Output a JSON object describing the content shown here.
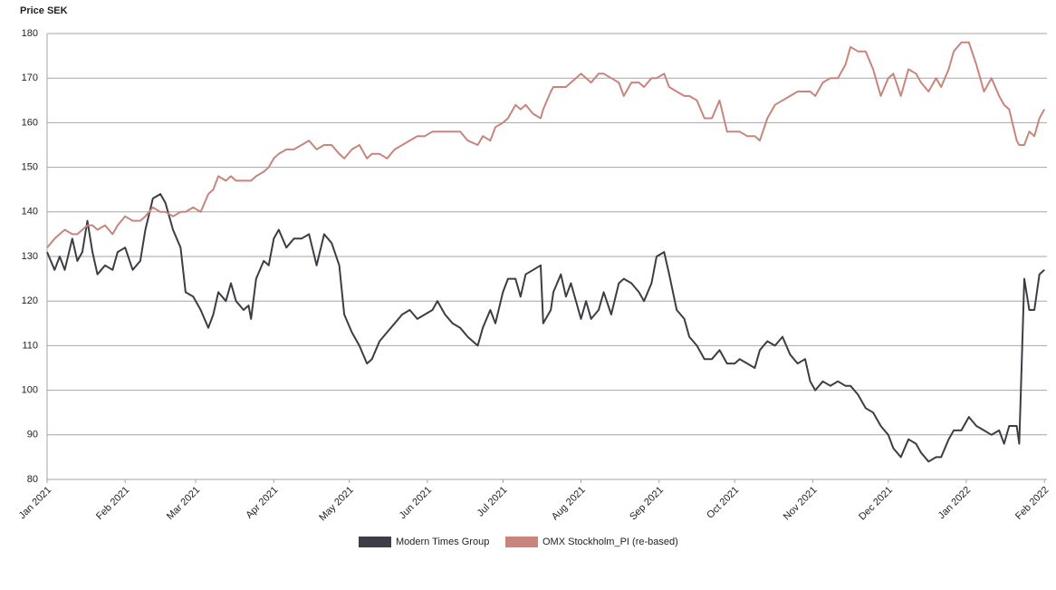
{
  "chart_data": {
    "type": "line",
    "y_label": "Price SEK",
    "x": [
      0,
      3,
      5,
      7,
      10,
      12,
      14,
      16,
      18,
      20,
      23,
      26,
      28,
      31,
      34,
      37,
      39,
      42,
      45,
      47,
      50,
      53,
      55,
      58,
      61,
      64,
      66,
      68,
      71,
      73,
      75,
      78,
      80,
      81,
      83,
      86,
      88,
      90,
      92,
      95,
      98,
      101,
      104,
      107,
      110,
      113,
      116,
      118,
      121,
      124,
      127,
      129,
      132,
      135,
      138,
      141,
      144,
      147,
      150,
      153,
      155,
      158,
      161,
      164,
      167,
      171,
      173,
      176,
      178,
      181,
      183,
      186,
      188,
      190,
      193,
      196,
      197,
      200,
      201,
      204,
      206,
      208,
      212,
      214,
      216,
      219,
      221,
      224,
      227,
      229,
      232,
      235,
      237,
      240,
      242,
      245,
      247,
      250,
      253,
      255,
      258,
      261,
      264,
      267,
      270,
      273,
      275,
      278,
      281,
      283,
      286,
      289,
      292,
      295,
      298,
      301,
      303,
      305,
      308,
      311,
      314,
      317,
      319,
      322,
      325,
      328,
      331,
      334,
      336,
      339,
      342,
      345,
      347,
      350,
      353,
      355,
      358,
      360,
      363,
      366,
      369,
      372,
      375,
      378,
      380,
      382,
      385,
      386,
      388,
      390,
      392,
      394,
      396
    ],
    "series": [
      {
        "name": "Modern Times Group",
        "color": "#3d3d45",
        "values": [
          131,
          127,
          130,
          127,
          134,
          129,
          131,
          138,
          131,
          126,
          128,
          127,
          131,
          132,
          127,
          129,
          136,
          143,
          144,
          142,
          136,
          132,
          122,
          121,
          118,
          114,
          117,
          122,
          120,
          124,
          120,
          118,
          119,
          116,
          125,
          129,
          128,
          134,
          136,
          132,
          134,
          134,
          135,
          128,
          135,
          133,
          128,
          117,
          113,
          110,
          106,
          107,
          111,
          113,
          115,
          117,
          118,
          116,
          117,
          118,
          120,
          117,
          115,
          114,
          112,
          110,
          114,
          118,
          115,
          122,
          125,
          125,
          121,
          126,
          127,
          128,
          115,
          118,
          122,
          126,
          121,
          124,
          116,
          120,
          116,
          118,
          122,
          117,
          124,
          125,
          124,
          122,
          120,
          124,
          130,
          131,
          126,
          118,
          116,
          112,
          110,
          107,
          107,
          109,
          106,
          106,
          107,
          106,
          105,
          109,
          111,
          110,
          112,
          108,
          106,
          107,
          102,
          100,
          102,
          101,
          102,
          101,
          101,
          99,
          96,
          95,
          92,
          90,
          87,
          85,
          89,
          88,
          86,
          84,
          85,
          85,
          89,
          91,
          91,
          94,
          92,
          91,
          90,
          91,
          88,
          92,
          92,
          88,
          125,
          118,
          118,
          126,
          127
        ]
      },
      {
        "name": "OMX Stockholm_PI (re-based)",
        "color": "#c8857c",
        "values": [
          132,
          134,
          135,
          136,
          135,
          135,
          136,
          137,
          137,
          136,
          137,
          135,
          137,
          139,
          138,
          138,
          139,
          141,
          140,
          140,
          139,
          140,
          140,
          141,
          140,
          144,
          145,
          148,
          147,
          148,
          147,
          147,
          147,
          147,
          148,
          149,
          150,
          152,
          153,
          154,
          154,
          155,
          156,
          154,
          155,
          155,
          153,
          152,
          154,
          155,
          152,
          153,
          153,
          152,
          154,
          155,
          156,
          157,
          157,
          158,
          158,
          158,
          158,
          158,
          156,
          155,
          157,
          156,
          159,
          160,
          161,
          164,
          163,
          164,
          162,
          161,
          163,
          167,
          168,
          168,
          168,
          169,
          171,
          170,
          169,
          171,
          171,
          170,
          169,
          166,
          169,
          169,
          168,
          170,
          170,
          171,
          168,
          167,
          166,
          166,
          165,
          161,
          161,
          165,
          158,
          158,
          158,
          157,
          157,
          156,
          161,
          164,
          165,
          166,
          167,
          167,
          167,
          166,
          169,
          170,
          170,
          173,
          177,
          176,
          176,
          172,
          166,
          170,
          171,
          166,
          172,
          171,
          169,
          167,
          170,
          168,
          172,
          176,
          178,
          178,
          173,
          167,
          170,
          166,
          164,
          163,
          156,
          155,
          155,
          158,
          157,
          161,
          163
        ]
      }
    ],
    "xlim": [
      0,
      397
    ],
    "xticks": [
      {
        "value": 0,
        "label": "Jan 2021"
      },
      {
        "value": 31,
        "label": "Feb 2021"
      },
      {
        "value": 59,
        "label": "Mar 2021"
      },
      {
        "value": 90,
        "label": "Apr 2021"
      },
      {
        "value": 120,
        "label": "May 2021"
      },
      {
        "value": 151,
        "label": "Jun 2021"
      },
      {
        "value": 181,
        "label": "Jul 2021"
      },
      {
        "value": 212,
        "label": "Aug 2021"
      },
      {
        "value": 243,
        "label": "Sep 2021"
      },
      {
        "value": 273,
        "label": "Oct 2021"
      },
      {
        "value": 304,
        "label": "Nov 2021"
      },
      {
        "value": 334,
        "label": "Dec 2021"
      },
      {
        "value": 365,
        "label": "Jan 2022"
      },
      {
        "value": 396,
        "label": "Feb 2022"
      }
    ],
    "ylim": [
      80,
      180
    ],
    "yticks": [
      80,
      90,
      100,
      110,
      120,
      130,
      140,
      150,
      160,
      170,
      180
    ],
    "grid": true,
    "legend": "bottom"
  }
}
